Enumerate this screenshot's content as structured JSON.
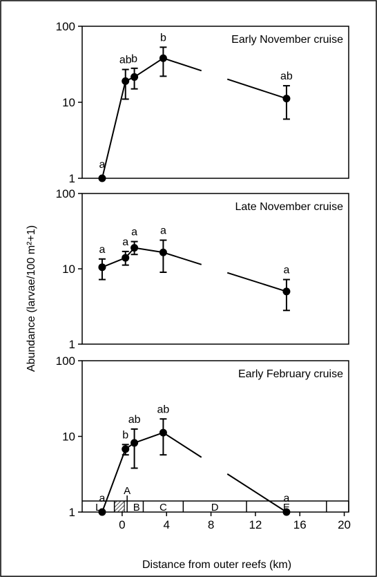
{
  "shared": {
    "ylabel": "Abundance (larvae/100 m²+1)",
    "xlabel": "Distance from outer reefs (km)",
    "x_ticks": [
      "0",
      "4",
      "8",
      "12",
      "16",
      "20"
    ],
    "y_ticks": [
      "1",
      "10",
      "100"
    ],
    "zones": [
      {
        "label": "L",
        "from": -3.6,
        "to": -0.7
      },
      {
        "label": "B",
        "from": 0.7,
        "to": 1.9
      },
      {
        "label": "C",
        "from": 1.9,
        "to": 5.5
      },
      {
        "label": "D",
        "from": 5.5,
        "to": 11.2
      },
      {
        "label": "E",
        "from": 11.2,
        "to": 18.4
      },
      {
        "label": "",
        "from": 18.4,
        "to": 20.4
      }
    ],
    "zone_A_label": "A"
  },
  "chart_data": [
    {
      "type": "line",
      "title": "Early November cruise",
      "xlim": [
        -3.6,
        20.4
      ],
      "ylim": [
        1,
        100
      ],
      "yscale": "log",
      "x": [
        -1.8,
        0.3,
        1.1,
        3.7,
        14.8
      ],
      "y": [
        1.0,
        19,
        21.5,
        38,
        11.2
      ],
      "err_low": [
        1.0,
        11,
        15,
        22,
        6
      ],
      "err_high": [
        1.0,
        27,
        28,
        53,
        16.5
      ],
      "labels": [
        "a",
        "ab",
        "b",
        "b",
        "ab"
      ],
      "gap_between_index": [
        3,
        4
      ]
    },
    {
      "type": "line",
      "title": "Late November cruise",
      "xlim": [
        -3.6,
        20.4
      ],
      "ylim": [
        1,
        100
      ],
      "yscale": "log",
      "x": [
        -1.8,
        0.3,
        1.1,
        3.7,
        14.8
      ],
      "y": [
        10.5,
        14,
        19,
        16.5,
        5
      ],
      "err_low": [
        7.2,
        11.2,
        15.5,
        9,
        2.8
      ],
      "err_high": [
        13.5,
        17,
        23,
        24,
        7.2
      ],
      "labels": [
        "a",
        "a",
        "a",
        "a",
        "a"
      ],
      "gap_between_index": [
        3,
        4
      ]
    },
    {
      "type": "line",
      "title": "Early February cruise",
      "xlim": [
        -3.6,
        20.4
      ],
      "ylim": [
        1,
        100
      ],
      "yscale": "log",
      "x": [
        -1.8,
        0.3,
        1.1,
        3.7,
        14.8
      ],
      "y": [
        1.0,
        6.8,
        8.2,
        11.2,
        1.0
      ],
      "err_low": [
        1.0,
        5.7,
        3.8,
        5.7,
        1.0
      ],
      "err_high": [
        1.0,
        7.8,
        12.5,
        17,
        1.0
      ],
      "labels": [
        "a",
        "b",
        "ab",
        "ab",
        "a"
      ],
      "gap_between_index": [
        3,
        4
      ]
    }
  ]
}
